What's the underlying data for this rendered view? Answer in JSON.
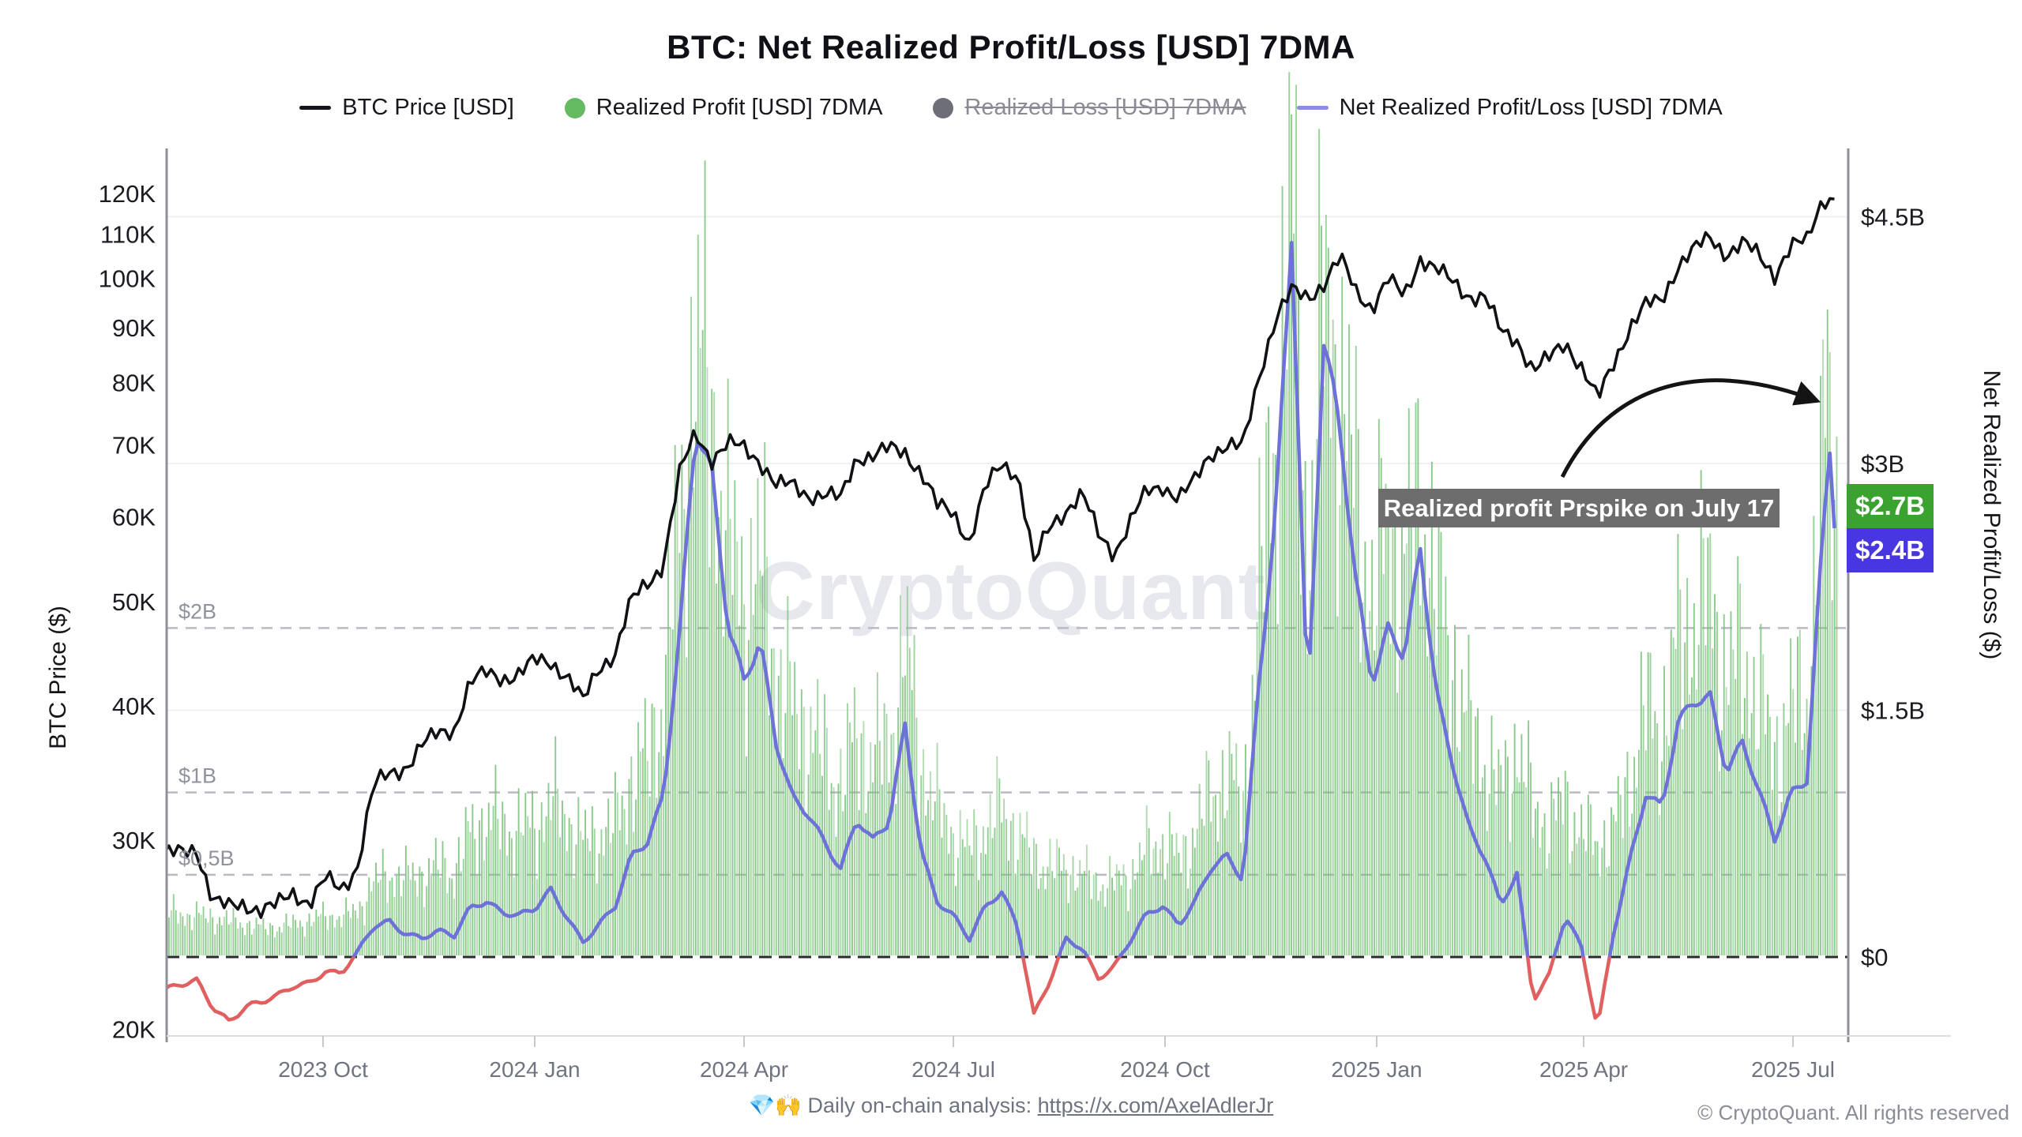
{
  "title": "BTC: Net Realized Profit/Loss [USD] 7DMA",
  "legend": [
    {
      "label": "BTC Price [USD]",
      "type": "line",
      "color": "#141419",
      "disabled": false
    },
    {
      "label": "Realized Profit [USD] 7DMA",
      "type": "dot",
      "color": "#63ba60",
      "disabled": false
    },
    {
      "label": "Realized Loss [USD] 7DMA",
      "type": "dot",
      "color": "#6e6e78",
      "disabled": true
    },
    {
      "label": "Net Realized Profit/Loss [USD] 7DMA",
      "type": "line",
      "color": "#8d8be8",
      "disabled": false
    }
  ],
  "left_axis": {
    "title": "BTC Price ($)"
  },
  "right_axis": {
    "title": "Net Realized Profit/Loss ($)"
  },
  "annotation": {
    "text": "Realized profit Prspike on July 17"
  },
  "badges": {
    "profit": {
      "label": "$2.7B",
      "color": "#3aa22f"
    },
    "net": {
      "label": "$2.4B",
      "color": "#4836e0"
    }
  },
  "watermark": "CryptoQuant",
  "footer": {
    "analysis_text": "💎🙌 Daily on-chain analysis: ",
    "analysis_link": "https://x.com/AxelAdlerJr",
    "copyright": "© CryptoQuant. All rights reserved"
  },
  "chart_data": {
    "type": "combo",
    "title": "BTC: Net Realized Profit/Loss [USD] 7DMA",
    "x_axis": {
      "ticks": [
        {
          "label": "2023 Oct",
          "date": "2023-10-01"
        },
        {
          "label": "2024 Jan",
          "date": "2024-01-01"
        },
        {
          "label": "2024 Apr",
          "date": "2024-04-01"
        },
        {
          "label": "2024 Jul",
          "date": "2024-07-01"
        },
        {
          "label": "2024 Oct",
          "date": "2024-10-01"
        },
        {
          "label": "2025 Jan",
          "date": "2025-01-01"
        },
        {
          "label": "2025 Apr",
          "date": "2025-04-01"
        },
        {
          "label": "2025 Jul",
          "date": "2025-07-01"
        }
      ]
    },
    "axes": {
      "price": {
        "scale": "log",
        "unit": "K USD",
        "range_k": [
          20,
          130
        ],
        "ticks": [
          {
            "label": "120K",
            "k": 120
          },
          {
            "label": "110K",
            "k": 110
          },
          {
            "label": "100K",
            "k": 100
          },
          {
            "label": "90K",
            "k": 90
          },
          {
            "label": "80K",
            "k": 80
          },
          {
            "label": "70K",
            "k": 70
          },
          {
            "label": "60K",
            "k": 60
          },
          {
            "label": "50K",
            "k": 50
          },
          {
            "label": "40K",
            "k": 40
          },
          {
            "label": "30K",
            "k": 30
          },
          {
            "label": "20K",
            "k": 20
          }
        ]
      },
      "usd": {
        "scale": "linear",
        "unit": "$B",
        "range_b": [
          -0.7,
          5.2
        ],
        "ticks": [
          {
            "label": "$4.5B",
            "b": 4.5
          },
          {
            "label": "$3B",
            "b": 3
          },
          {
            "label": "$1.5B",
            "b": 1.5
          },
          {
            "label": "$0",
            "b": 0
          }
        ],
        "dashed_levels": [
          {
            "label": "$2B",
            "b": 2
          },
          {
            "label": "$1B",
            "b": 1
          },
          {
            "label": "$0,5B",
            "b": 0.5
          }
        ]
      }
    },
    "x_dates": [
      "2023-07-24",
      "2023-07-31",
      "2023-08-07",
      "2023-08-14",
      "2023-08-21",
      "2023-08-28",
      "2023-09-04",
      "2023-09-11",
      "2023-09-18",
      "2023-09-25",
      "2023-10-02",
      "2023-10-09",
      "2023-10-16",
      "2023-10-23",
      "2023-10-30",
      "2023-11-06",
      "2023-11-13",
      "2023-11-20",
      "2023-11-27",
      "2023-12-04",
      "2023-12-11",
      "2023-12-18",
      "2023-12-25",
      "2024-01-01",
      "2024-01-08",
      "2024-01-15",
      "2024-01-22",
      "2024-01-29",
      "2024-02-05",
      "2024-02-12",
      "2024-02-19",
      "2024-02-26",
      "2024-03-04",
      "2024-03-11",
      "2024-03-18",
      "2024-03-25",
      "2024-04-01",
      "2024-04-08",
      "2024-04-15",
      "2024-04-22",
      "2024-04-29",
      "2024-05-06",
      "2024-05-13",
      "2024-05-20",
      "2024-05-27",
      "2024-06-03",
      "2024-06-10",
      "2024-06-17",
      "2024-06-24",
      "2024-07-01",
      "2024-07-08",
      "2024-07-15",
      "2024-07-22",
      "2024-07-29",
      "2024-08-05",
      "2024-08-12",
      "2024-08-19",
      "2024-08-26",
      "2024-09-02",
      "2024-09-09",
      "2024-09-16",
      "2024-09-23",
      "2024-09-30",
      "2024-10-07",
      "2024-10-14",
      "2024-10-21",
      "2024-10-28",
      "2024-11-04",
      "2024-11-11",
      "2024-11-18",
      "2024-11-25",
      "2024-12-02",
      "2024-12-09",
      "2024-12-16",
      "2024-12-23",
      "2024-12-30",
      "2025-01-06",
      "2025-01-13",
      "2025-01-20",
      "2025-01-27",
      "2025-02-03",
      "2025-02-10",
      "2025-02-17",
      "2025-02-24",
      "2025-03-03",
      "2025-03-10",
      "2025-03-17",
      "2025-03-24",
      "2025-03-31",
      "2025-04-07",
      "2025-04-14",
      "2025-04-21",
      "2025-04-28",
      "2025-05-05",
      "2025-05-12",
      "2025-05-19",
      "2025-05-26",
      "2025-06-02",
      "2025-06-09",
      "2025-06-16",
      "2025-06-23",
      "2025-06-30",
      "2025-07-07",
      "2025-07-14",
      "2025-07-17",
      "2025-07-20"
    ],
    "series": [
      {
        "name": "BTC Price [USD]",
        "type": "line",
        "axis": "price",
        "color": "#101114",
        "unit": "K USD",
        "values": [
          29.2,
          29.2,
          29.6,
          26.6,
          26.0,
          26.1,
          25.8,
          25.9,
          26.6,
          26.2,
          27.6,
          27.0,
          28.6,
          33.9,
          34.6,
          35.1,
          36.6,
          37.4,
          37.9,
          42.0,
          42.9,
          42.7,
          43.1,
          44.2,
          44.1,
          42.6,
          40.1,
          43.2,
          44.6,
          50.0,
          52.1,
          54.6,
          66.1,
          72.1,
          68.1,
          69.9,
          69.1,
          67.3,
          63.9,
          64.1,
          63.1,
          63.3,
          62.6,
          68.6,
          68.4,
          69.1,
          68.6,
          65.6,
          61.1,
          60.6,
          57.1,
          64.1,
          67.6,
          66.1,
          54.1,
          58.6,
          60.6,
          62.6,
          57.6,
          55.6,
          59.6,
          63.6,
          64.6,
          62.6,
          64.6,
          68.6,
          69.6,
          69.1,
          81.1,
          92.1,
          97.6,
          96.6,
          99.6,
          104.6,
          97.1,
          93.6,
          99.1,
          95.6,
          104.6,
          102.1,
          99.6,
          97.1,
          96.6,
          89.1,
          87.6,
          81.6,
          83.6,
          87.1,
          82.6,
          77.1,
          84.1,
          90.6,
          94.6,
          95.6,
          102.6,
          105.6,
          108.6,
          105.1,
          107.6,
          105.6,
          101.6,
          107.6,
          108.6,
          119.1,
          118.6,
          118.1
        ]
      },
      {
        "name": "Realized Profit [USD] 7DMA",
        "type": "bar",
        "axis": "usd",
        "color": "#74bf75",
        "unit": "$B",
        "values": [
          0.27,
          0.26,
          0.25,
          0.24,
          0.22,
          0.2,
          0.18,
          0.18,
          0.2,
          0.22,
          0.25,
          0.24,
          0.28,
          0.45,
          0.5,
          0.48,
          0.5,
          0.55,
          0.52,
          0.75,
          0.85,
          0.8,
          0.78,
          0.8,
          0.95,
          0.85,
          0.7,
          0.75,
          0.8,
          1.1,
          1.2,
          1.6,
          2.7,
          3.7,
          3.3,
          2.5,
          2.2,
          2.4,
          1.8,
          1.5,
          1.4,
          1.2,
          1.05,
          1.35,
          1.2,
          1.3,
          1.9,
          1.2,
          0.9,
          0.75,
          0.65,
          0.8,
          0.9,
          0.75,
          0.6,
          0.55,
          0.55,
          0.5,
          0.45,
          0.45,
          0.5,
          0.65,
          0.7,
          0.6,
          0.75,
          1.0,
          1.1,
          0.95,
          2.2,
          3.2,
          4.6,
          2.4,
          4.0,
          3.5,
          2.8,
          2.2,
          2.6,
          2.4,
          2.85,
          2.2,
          1.8,
          1.4,
          1.2,
          1.0,
          1.3,
          0.9,
          0.8,
          0.95,
          0.75,
          0.7,
          0.75,
          1.1,
          1.5,
          1.4,
          1.9,
          2.1,
          2.2,
          1.7,
          1.85,
          1.55,
          1.25,
          1.5,
          1.6,
          3.0,
          3.4,
          2.7
        ]
      },
      {
        "name": "Realized Loss [USD] 7DMA",
        "type": "bar",
        "axis": "usd",
        "color": "#6e6e78",
        "unit": "$B",
        "visible": false,
        "values": null
      },
      {
        "name": "Net Realized Profit/Loss [USD] 7DMA",
        "type": "line",
        "axis": "usd",
        "color": "#6e71d7",
        "color_below_zero": "#e06060",
        "unit": "$B",
        "values": [
          -0.2,
          -0.18,
          -0.15,
          -0.3,
          -0.38,
          -0.3,
          -0.28,
          -0.25,
          -0.18,
          -0.15,
          -0.08,
          -0.1,
          0.02,
          0.18,
          0.22,
          0.15,
          0.12,
          0.15,
          0.12,
          0.3,
          0.35,
          0.28,
          0.25,
          0.28,
          0.4,
          0.25,
          0.1,
          0.2,
          0.3,
          0.6,
          0.7,
          1.0,
          2.0,
          3.2,
          2.9,
          2.0,
          1.7,
          1.95,
          1.3,
          0.95,
          0.85,
          0.7,
          0.55,
          0.85,
          0.7,
          0.8,
          1.4,
          0.65,
          0.35,
          0.25,
          0.1,
          0.3,
          0.4,
          0.2,
          -0.35,
          -0.15,
          0.1,
          0.05,
          -0.12,
          -0.05,
          0.1,
          0.25,
          0.3,
          0.2,
          0.35,
          0.55,
          0.6,
          0.45,
          1.7,
          2.7,
          4.45,
          1.5,
          3.7,
          3.2,
          2.3,
          1.7,
          2.0,
          1.8,
          2.45,
          1.6,
          1.2,
          0.8,
          0.6,
          0.3,
          0.5,
          -0.25,
          -0.1,
          0.25,
          0.05,
          -0.45,
          0.15,
          0.6,
          1.0,
          0.9,
          1.4,
          1.55,
          1.6,
          1.15,
          1.3,
          1.0,
          0.7,
          1.0,
          1.1,
          2.6,
          3.1,
          2.4
        ]
      }
    ],
    "annotations": [
      {
        "text": "Realized profit Prspike on July 17",
        "points_to_date": "2025-07-17"
      },
      {
        "text": "$2.7B",
        "meaning": "last Realized Profit 7DMA value",
        "b": 2.7
      },
      {
        "text": "$2.4B",
        "meaning": "last Net Realized Profit/Loss 7DMA value",
        "b": 2.4
      }
    ]
  }
}
